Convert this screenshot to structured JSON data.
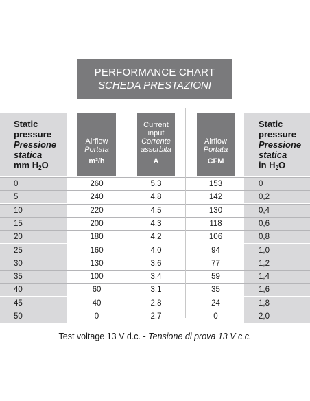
{
  "title": {
    "line1": "PERFORMANCE CHART",
    "line2": "SCHEDA PRESTAZIONI"
  },
  "left_header": {
    "line1": "Static",
    "line2": "pressure",
    "line3": "Pressione",
    "line4": "statica",
    "unit_prefix": "mm H",
    "unit_sub": "2",
    "unit_suffix": "O"
  },
  "right_header": {
    "line1": "Static",
    "line2": "pressure",
    "line3": "Pressione",
    "line4": "statica",
    "unit_prefix": "in H",
    "unit_sub": "2",
    "unit_suffix": "O"
  },
  "col_airflow_m3h": {
    "line1": "Airflow",
    "line2": "Portata",
    "unit": "m³/h"
  },
  "col_current": {
    "line1": "Current",
    "line2": "input",
    "line3": "Corrente",
    "line4": "assorbita",
    "unit": "A"
  },
  "col_airflow_cfm": {
    "line1": "Airflow",
    "line2": "Portata",
    "unit": "CFM"
  },
  "rows": [
    {
      "mm": "0",
      "m3h": "260",
      "a": "5,3",
      "cfm": "153",
      "inh": "0"
    },
    {
      "mm": "5",
      "m3h": "240",
      "a": "4,8",
      "cfm": "142",
      "inh": "0,2"
    },
    {
      "mm": "10",
      "m3h": "220",
      "a": "4,5",
      "cfm": "130",
      "inh": "0,4"
    },
    {
      "mm": "15",
      "m3h": "200",
      "a": "4,3",
      "cfm": "118",
      "inh": "0,6"
    },
    {
      "mm": "20",
      "m3h": "180",
      "a": "4,2",
      "cfm": "106",
      "inh": "0,8"
    },
    {
      "mm": "25",
      "m3h": "160",
      "a": "4,0",
      "cfm": "94",
      "inh": "1,0"
    },
    {
      "mm": "30",
      "m3h": "130",
      "a": "3,6",
      "cfm": "77",
      "inh": "1,2"
    },
    {
      "mm": "35",
      "m3h": "100",
      "a": "3,4",
      "cfm": "59",
      "inh": "1,4"
    },
    {
      "mm": "40",
      "m3h": "60",
      "a": "3,1",
      "cfm": "35",
      "inh": "1,6"
    },
    {
      "mm": "45",
      "m3h": "40",
      "a": "2,8",
      "cfm": "24",
      "inh": "1,8"
    },
    {
      "mm": "50",
      "m3h": "0",
      "a": "2,7",
      "cfm": "0",
      "inh": "2,0"
    }
  ],
  "footer": {
    "normal": "Test voltage 13 V d.c. - ",
    "italic": "Tensione di prova 13 V c.c."
  }
}
